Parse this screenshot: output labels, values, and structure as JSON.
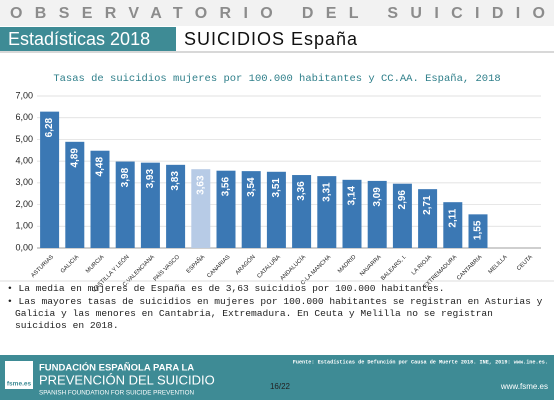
{
  "header": {
    "banner": "OBSERVATORIO DEL SUICIDIO",
    "section": "Estadísticas 2018",
    "topic": "SUICIDIOS España"
  },
  "chart_data": {
    "type": "bar",
    "title": "Tasas de suicidios mujeres por 100.000 habitantes y CC.AA. España, 2018",
    "categories": [
      "ASTURIAS",
      "GALICIA",
      "MURCIA",
      "CASTILLA Y LEÓN",
      "C.VALENCIANA",
      "PAÍS VASCO",
      "ESPAÑA",
      "CANARIAS",
      "ARAGÓN",
      "CATALUÑA",
      "ANDALUCÍA",
      "C-LA MANCHA",
      "MADRID",
      "NAVARRA",
      "BALEARS, I.",
      "LA RIOJA",
      "EXTREMADURA",
      "CANTABRIA",
      "MELILLA",
      "CEUTA"
    ],
    "values": [
      6.28,
      4.89,
      4.48,
      3.98,
      3.93,
      3.83,
      3.63,
      3.56,
      3.54,
      3.51,
      3.36,
      3.31,
      3.14,
      3.09,
      2.96,
      2.71,
      2.11,
      1.55,
      null,
      null
    ],
    "value_labels": [
      "6,28",
      "4,89",
      "4,48",
      "3,98",
      "3,93",
      "3,83",
      "3,63",
      "3,56",
      "3,54",
      "3,51",
      "3,36",
      "3,31",
      "3,14",
      "3,09",
      "2,96",
      "2,71",
      "2,11",
      "1,55",
      null,
      null
    ],
    "colors": [
      "#3b78b4",
      "#3b78b4",
      "#3b78b4",
      "#3b78b4",
      "#3b78b4",
      "#3b78b4",
      "#b7cbe6",
      "#3b78b4",
      "#3b78b4",
      "#3b78b4",
      "#3b78b4",
      "#3b78b4",
      "#3b78b4",
      "#3b78b4",
      "#3b78b4",
      "#3b78b4",
      "#3b78b4",
      "#3b78b4",
      "#3b78b4",
      "#3b78b4"
    ],
    "ylim": [
      0,
      7
    ],
    "yticks": [
      {
        "value": 0,
        "label": "0,00"
      },
      {
        "value": 1,
        "label": "1,00"
      },
      {
        "value": 2,
        "label": "2,00"
      },
      {
        "value": 3,
        "label": "3,00"
      },
      {
        "value": 4,
        "label": "4,00"
      },
      {
        "value": 5,
        "label": "5,00"
      },
      {
        "value": 6,
        "label": "6,00"
      },
      {
        "value": 7,
        "label": "7,00"
      }
    ],
    "grid": true
  },
  "bullets": [
    "La media en mujeres de España es de 3,63 suicidios por 100.000 habitantes.",
    "Las mayores tasas de suicidios en mujeres por 100.000 habitantes se registran en Asturias y Galicia y las menores en Cantabria, Extremadura. En Ceuta y Melilla no se registran suicidios en 2018."
  ],
  "footer": {
    "source": "Fuente: Estadísticas de Defunción por Causa de Muerte 2018. INE, 2019: www.ine.es.",
    "logo_mark": "fsme.es",
    "org_line1": "FUNDACIÓN ESPAÑOLA PARA LA",
    "org_line2": "PREVENCIÓN DEL SUICIDIO",
    "org_line3": "SPANISH FOUNDATION FOR SUICIDE PREVENTION",
    "page": "16/22",
    "url": "www.fsme.es"
  }
}
